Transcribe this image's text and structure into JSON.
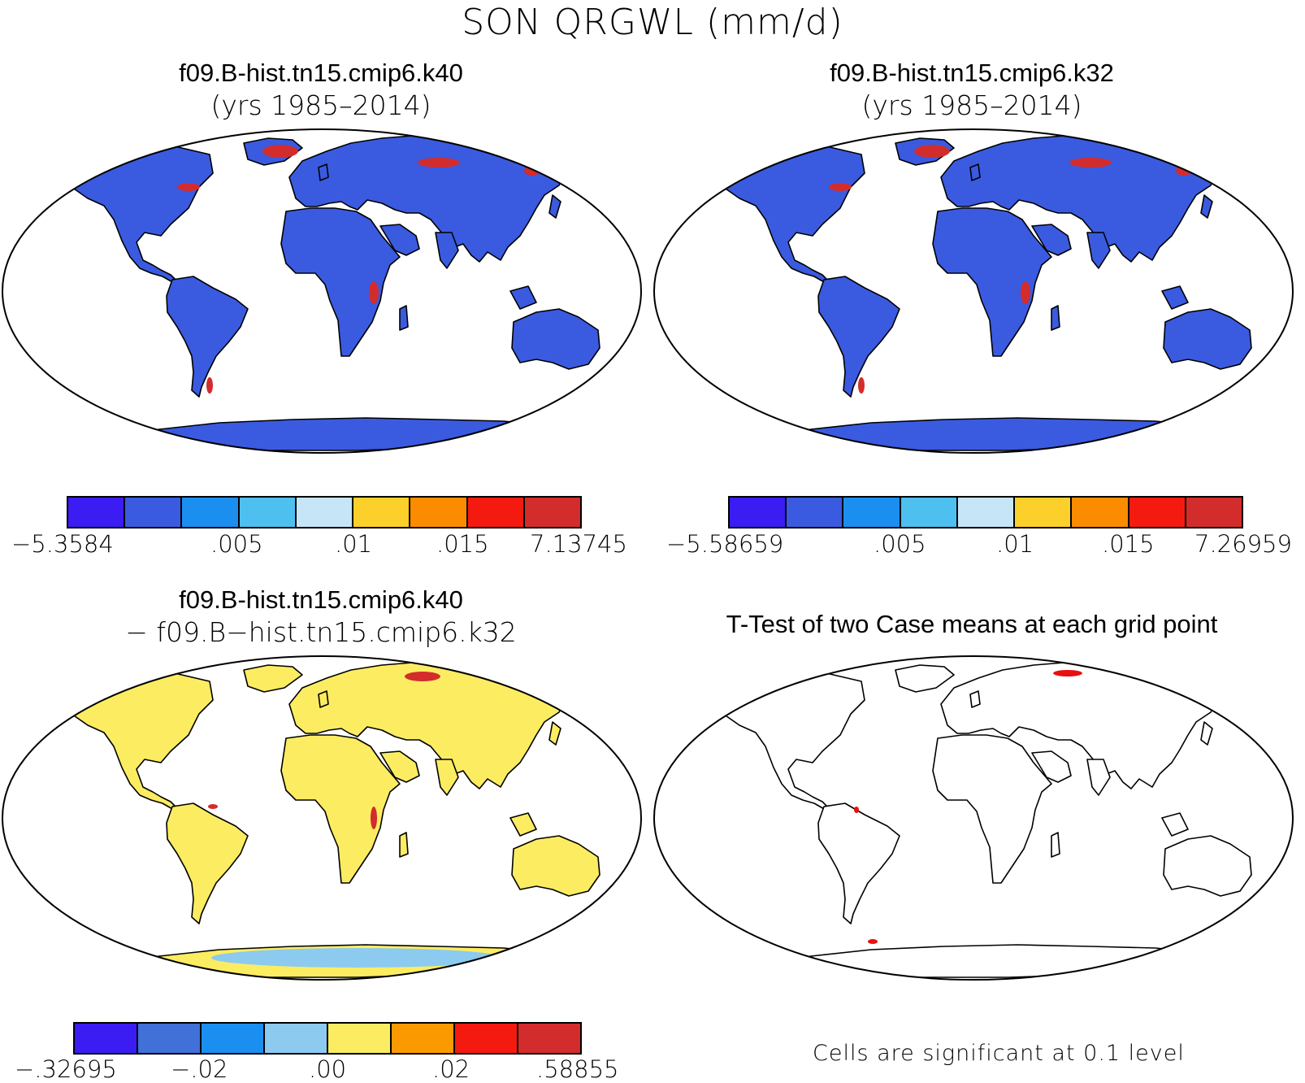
{
  "figure_title": "SON QRGWL (mm/d)",
  "panels": [
    {
      "title_line1": "f09.B-hist.tn15.cmip6.k40",
      "title_line2": "(yrs 1985–2014)",
      "colorbar": {
        "colors": [
          "#3b1cf2",
          "#3a5be0",
          "#1b8ff0",
          "#4ec0f0",
          "#c6e6f7",
          "#fbd02a",
          "#fb8c00",
          "#f51a10",
          "#d32c2c"
        ],
        "labels": [
          "−5.3584",
          ".005",
          ".01",
          ".015",
          "7.13745"
        ]
      }
    },
    {
      "title_line1": "f09.B-hist.tn15.cmip6.k32",
      "title_line2": "(yrs 1985–2014)",
      "colorbar": {
        "colors": [
          "#3b1cf2",
          "#3a5be0",
          "#1b8ff0",
          "#4ec0f0",
          "#c6e6f7",
          "#fbd02a",
          "#fb8c00",
          "#f51a10",
          "#d32c2c"
        ],
        "labels": [
          "−5.58659",
          ".005",
          ".01",
          ".015",
          "7.26959"
        ]
      }
    },
    {
      "title_line1": "f09.B-hist.tn15.cmip6.k40",
      "title_line2": "− f09.B−hist.tn15.cmip6.k32",
      "colorbar": {
        "colors": [
          "#3b1cf2",
          "#4070d8",
          "#1b8ff0",
          "#8ccaf0",
          "#fbec62",
          "#fb9a00",
          "#f51a10",
          "#d32c2c"
        ],
        "labels": [
          "−.32695",
          "−.02",
          ".00",
          ".02",
          ".58855"
        ]
      }
    },
    {
      "title_line1": "T-Test of two Case means at each grid point",
      "footnote": "Cells are significant at 0.1 level"
    }
  ],
  "map_colors": {
    "land_k40": "#3a5be0",
    "land_k32": "#3a5be0",
    "land_diff": "#fbec62",
    "antarctic_diff_accent": "#8ccaf0",
    "hotspot": "#d32c2c",
    "significant": "#e81010",
    "coast": "#000000"
  }
}
